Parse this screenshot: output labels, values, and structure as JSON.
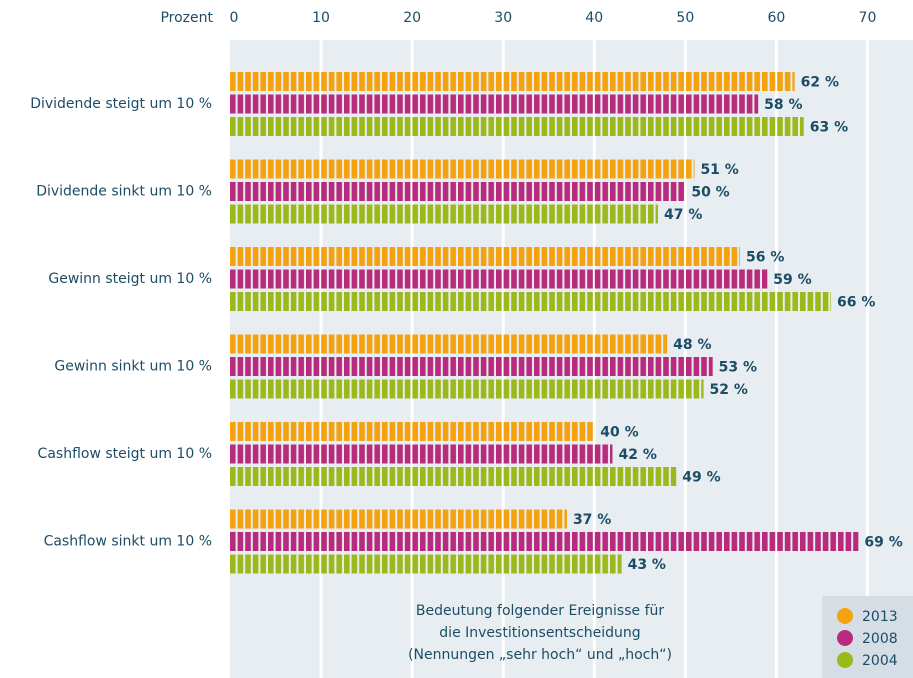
{
  "chart_data": {
    "type": "barh",
    "x_label": "Prozent",
    "annotation": [
      "Bedeutung folgender Ereignisse für",
      "die Investitionsentscheidung",
      "(Nennungen „sehr hoch“ und „hoch“)"
    ],
    "categories": [
      "Dividende steigt um 10 %",
      "Dividende sinkt um 10 %",
      "Gewinn steigt um 10 %",
      "Gewinn sinkt um 10 %",
      "Cashflow steigt um 10 %",
      "Cashflow sinkt um 10 %"
    ],
    "series": [
      {
        "name": "2013",
        "color": "#f4a20e",
        "values": [
          62,
          51,
          56,
          48,
          40,
          37
        ],
        "value_labels": [
          "62 %",
          "51 %",
          "56 %",
          "48 %",
          "40 %",
          "37 %"
        ]
      },
      {
        "name": "2008",
        "color": "#b72a7c",
        "values": [
          58,
          50,
          59,
          53,
          42,
          69
        ],
        "value_labels": [
          "58 %",
          "50 %",
          "59 %",
          "53 %",
          "42 %",
          "69 %"
        ]
      },
      {
        "name": "2004",
        "color": "#9cb91b",
        "values": [
          63,
          47,
          66,
          52,
          49,
          43
        ],
        "value_labels": [
          "63 %",
          "47 %",
          "66 %",
          "52 %",
          "49 %",
          "43 %"
        ]
      }
    ],
    "xlim": [
      0,
      75
    ],
    "xticks": [
      0,
      10,
      20,
      30,
      40,
      50,
      60,
      70
    ],
    "grid": true,
    "legend": "bottom-right"
  }
}
